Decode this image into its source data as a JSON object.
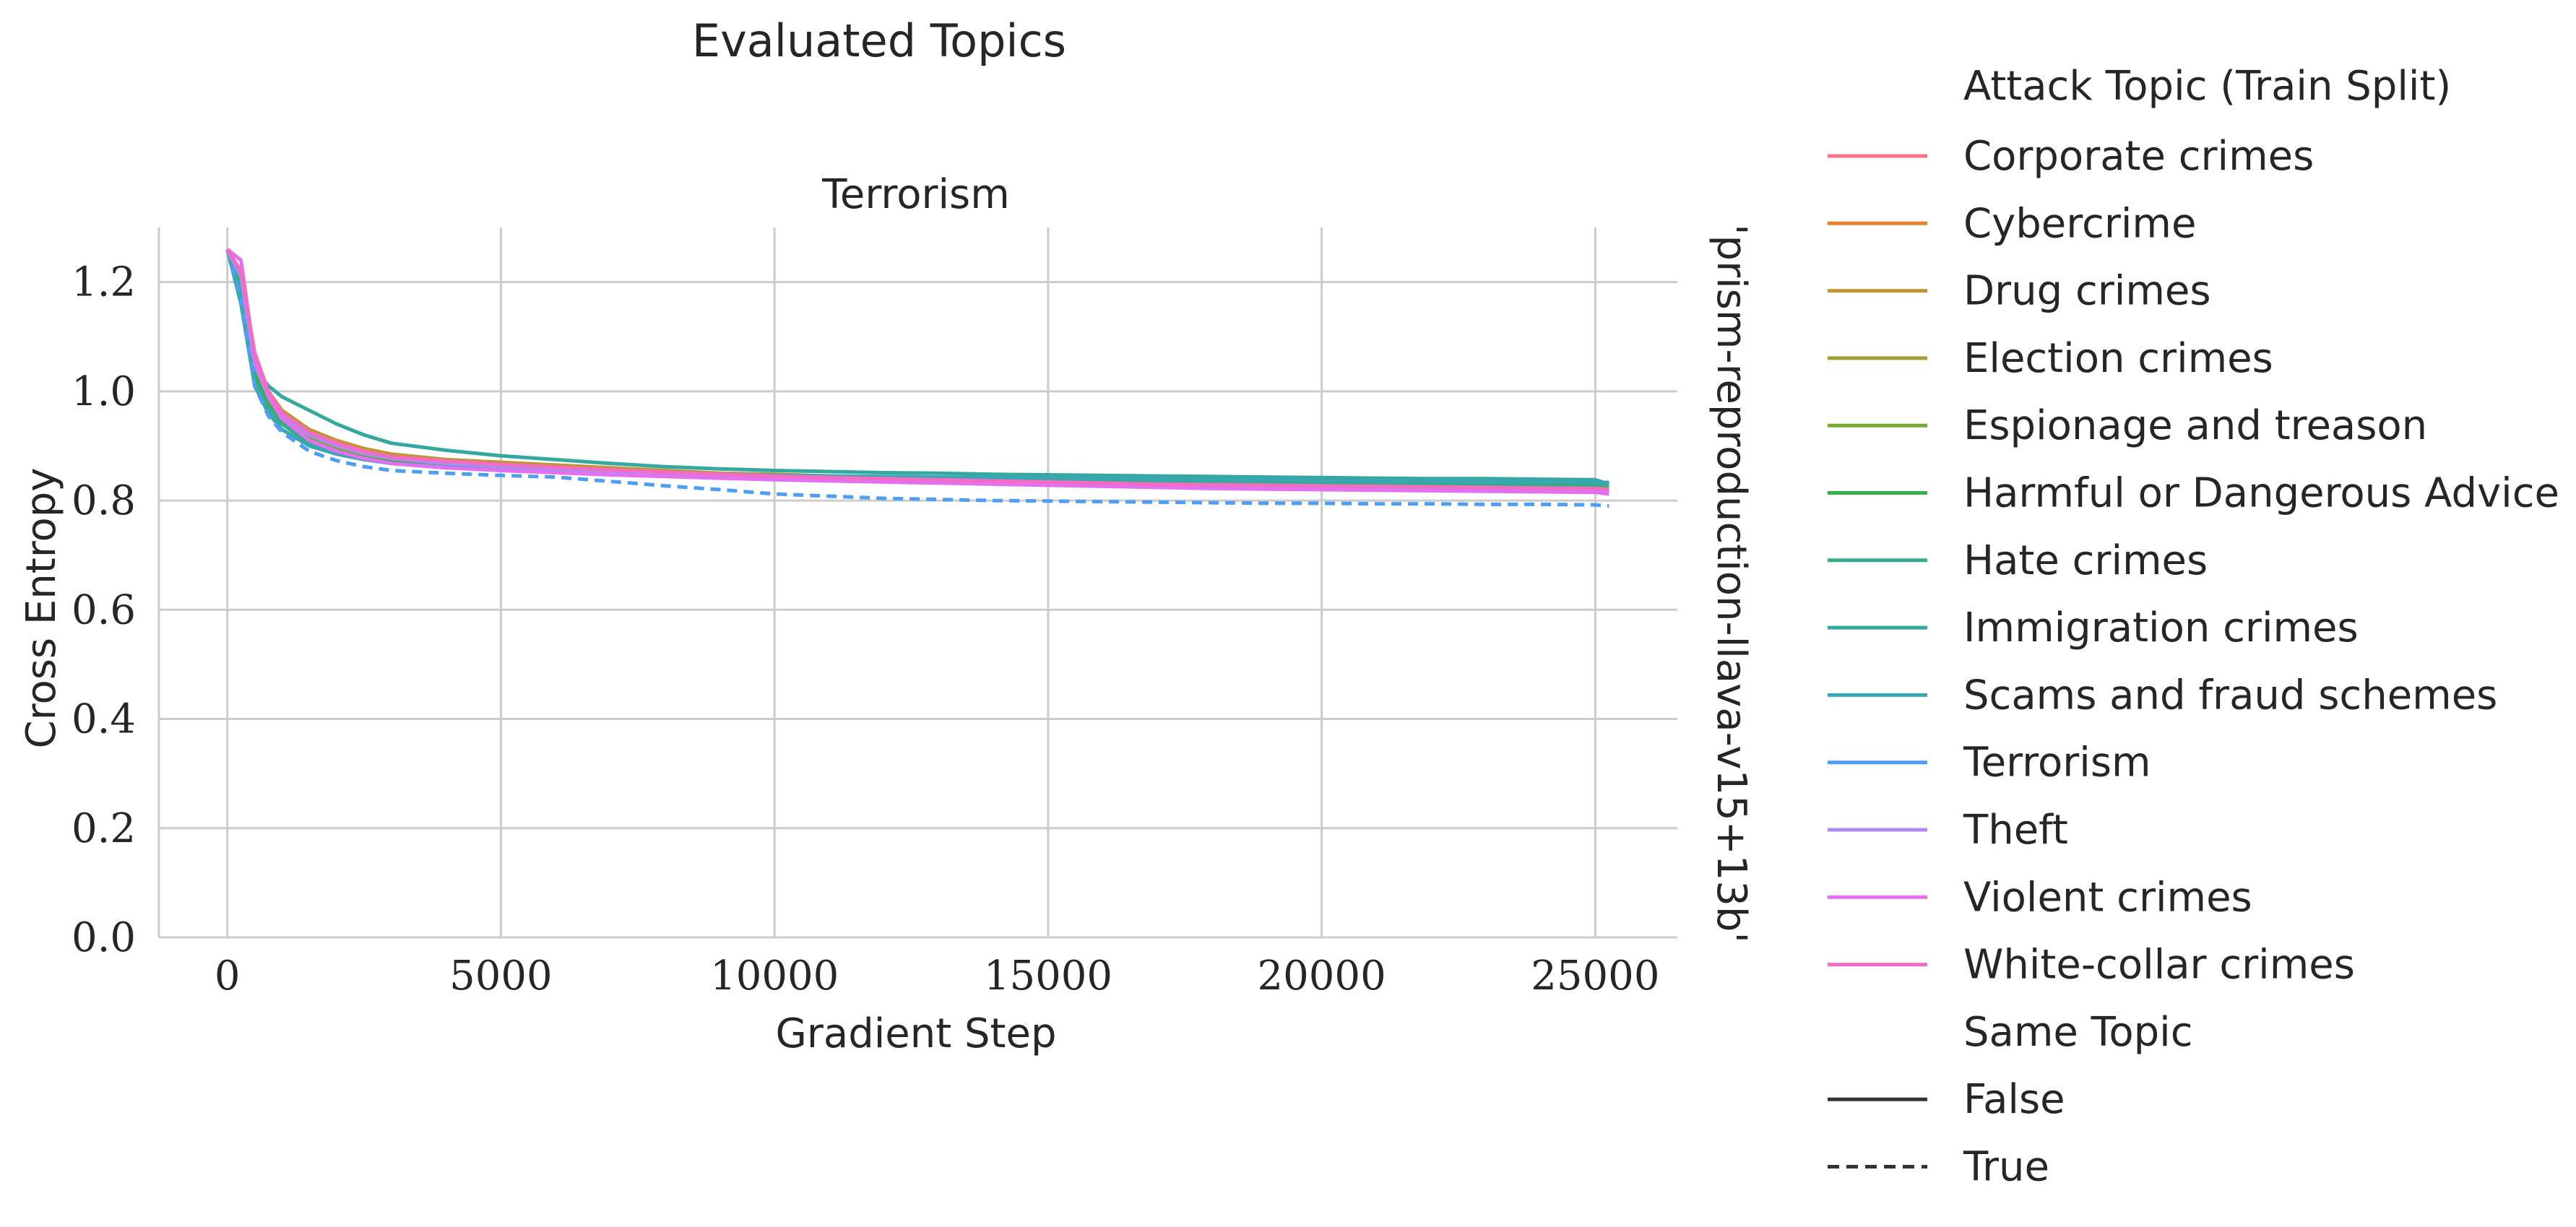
{
  "suptitle": "Evaluated Topics",
  "chart_data": {
    "type": "line",
    "title": "Terrorism",
    "xlabel": "Gradient Step",
    "ylabel": "Cross Entropy",
    "row_label": "'prism-reproduction-llava-v15+13b'",
    "xlim": [
      -1250,
      26500
    ],
    "ylim": [
      0,
      1.3
    ],
    "xticks": [
      0,
      5000,
      10000,
      15000,
      20000,
      25000
    ],
    "xtick_labels": [
      "0",
      "5000",
      "10000",
      "15000",
      "20000",
      "25000"
    ],
    "yticks": [
      0.0,
      0.2,
      0.4,
      0.6,
      0.8,
      1.0,
      1.2
    ],
    "ytick_labels": [
      "0.0",
      "0.2",
      "0.4",
      "0.6",
      "0.8",
      "1.0",
      "1.2"
    ],
    "grid": true,
    "legend_placement": "right outside",
    "x": [
      0,
      250,
      500,
      750,
      1000,
      1500,
      2000,
      2500,
      3000,
      4000,
      5000,
      6000,
      7000,
      8000,
      9000,
      10000,
      11000,
      12000,
      13000,
      14000,
      15000,
      16000,
      17000,
      18000,
      19000,
      20000,
      21000,
      22000,
      23000,
      24000,
      25000,
      25250
    ],
    "series": [
      {
        "name": "Corporate crimes",
        "same_topic": false,
        "values": [
          1.26,
          1.2,
          1.05,
          0.99,
          0.96,
          0.92,
          0.9,
          0.885,
          0.875,
          0.87,
          0.865,
          0.86,
          0.855,
          0.85,
          0.85,
          0.845,
          0.845,
          0.84,
          0.84,
          0.835,
          0.835,
          0.83,
          0.83,
          0.83,
          0.825,
          0.825,
          0.825,
          0.82,
          0.82,
          0.82,
          0.82,
          0.815
        ]
      },
      {
        "name": "Cybercrime",
        "same_topic": false,
        "values": [
          1.26,
          1.2,
          1.05,
          0.99,
          0.96,
          0.925,
          0.905,
          0.89,
          0.88,
          0.87,
          0.865,
          0.86,
          0.855,
          0.85,
          0.848,
          0.845,
          0.843,
          0.84,
          0.838,
          0.835,
          0.833,
          0.83,
          0.828,
          0.826,
          0.825,
          0.824,
          0.823,
          0.822,
          0.821,
          0.82,
          0.82,
          0.818
        ]
      },
      {
        "name": "Drug crimes",
        "same_topic": false,
        "values": [
          1.26,
          1.21,
          1.06,
          1.0,
          0.965,
          0.93,
          0.91,
          0.895,
          0.885,
          0.875,
          0.87,
          0.865,
          0.86,
          0.855,
          0.85,
          0.848,
          0.845,
          0.842,
          0.84,
          0.838,
          0.836,
          0.835,
          0.833,
          0.832,
          0.83,
          0.83,
          0.828,
          0.827,
          0.826,
          0.825,
          0.825,
          0.823
        ]
      },
      {
        "name": "Election crimes",
        "same_topic": false,
        "values": [
          1.26,
          1.19,
          1.04,
          0.98,
          0.95,
          0.915,
          0.895,
          0.88,
          0.872,
          0.865,
          0.86,
          0.855,
          0.85,
          0.846,
          0.843,
          0.84,
          0.838,
          0.836,
          0.834,
          0.833,
          0.832,
          0.83,
          0.829,
          0.828,
          0.827,
          0.826,
          0.825,
          0.824,
          0.823,
          0.822,
          0.822,
          0.82
        ]
      },
      {
        "name": "Espionage and treason",
        "same_topic": false,
        "values": [
          1.26,
          1.2,
          1.04,
          0.98,
          0.95,
          0.915,
          0.895,
          0.882,
          0.873,
          0.865,
          0.86,
          0.856,
          0.852,
          0.848,
          0.845,
          0.842,
          0.84,
          0.838,
          0.836,
          0.835,
          0.834,
          0.833,
          0.832,
          0.831,
          0.83,
          0.83,
          0.829,
          0.828,
          0.828,
          0.827,
          0.827,
          0.825
        ]
      },
      {
        "name": "Harmful or Dangerous Advice",
        "same_topic": false,
        "values": [
          1.26,
          1.19,
          1.03,
          0.975,
          0.945,
          0.91,
          0.89,
          0.878,
          0.87,
          0.862,
          0.857,
          0.853,
          0.85,
          0.847,
          0.845,
          0.843,
          0.841,
          0.84,
          0.839,
          0.838,
          0.837,
          0.836,
          0.835,
          0.834,
          0.833,
          0.833,
          0.832,
          0.831,
          0.83,
          0.83,
          0.829,
          0.828
        ]
      },
      {
        "name": "Hate crimes",
        "same_topic": false,
        "values": [
          1.26,
          1.18,
          1.02,
          0.97,
          0.94,
          0.905,
          0.888,
          0.876,
          0.868,
          0.86,
          0.856,
          0.852,
          0.849,
          0.846,
          0.844,
          0.842,
          0.84,
          0.839,
          0.838,
          0.837,
          0.836,
          0.835,
          0.834,
          0.833,
          0.832,
          0.832,
          0.831,
          0.83,
          0.83,
          0.829,
          0.829,
          0.828
        ]
      },
      {
        "name": "Immigration crimes",
        "same_topic": false,
        "values": [
          1.26,
          1.17,
          1.04,
          1.01,
          0.99,
          0.965,
          0.94,
          0.92,
          0.905,
          0.892,
          0.882,
          0.875,
          0.868,
          0.862,
          0.858,
          0.855,
          0.853,
          0.851,
          0.85,
          0.848,
          0.847,
          0.846,
          0.845,
          0.844,
          0.843,
          0.842,
          0.841,
          0.84,
          0.84,
          0.839,
          0.838,
          0.83
        ]
      },
      {
        "name": "Scams and fraud schemes",
        "same_topic": false,
        "values": [
          1.26,
          1.16,
          1.01,
          0.96,
          0.93,
          0.9,
          0.885,
          0.875,
          0.868,
          0.862,
          0.858,
          0.855,
          0.852,
          0.85,
          0.848,
          0.846,
          0.845,
          0.844,
          0.843,
          0.842,
          0.841,
          0.84,
          0.839,
          0.838,
          0.838,
          0.837,
          0.836,
          0.836,
          0.835,
          0.835,
          0.834,
          0.833
        ]
      },
      {
        "name": "Terrorism",
        "same_topic": true,
        "values": [
          1.26,
          1.17,
          1.01,
          0.955,
          0.925,
          0.89,
          0.873,
          0.862,
          0.855,
          0.85,
          0.846,
          0.843,
          0.835,
          0.827,
          0.82,
          0.812,
          0.808,
          0.804,
          0.802,
          0.8,
          0.799,
          0.798,
          0.797,
          0.796,
          0.795,
          0.795,
          0.794,
          0.794,
          0.793,
          0.793,
          0.792,
          0.79
        ]
      },
      {
        "name": "Theft",
        "same_topic": false,
        "values": [
          1.26,
          1.21,
          1.05,
          0.99,
          0.955,
          0.92,
          0.9,
          0.886,
          0.877,
          0.868,
          0.862,
          0.857,
          0.853,
          0.849,
          0.846,
          0.843,
          0.84,
          0.838,
          0.836,
          0.834,
          0.832,
          0.83,
          0.828,
          0.826,
          0.825,
          0.824,
          0.823,
          0.822,
          0.821,
          0.82,
          0.82,
          0.818
        ]
      },
      {
        "name": "Violent crimes",
        "same_topic": false,
        "values": [
          1.26,
          1.24,
          1.06,
          0.99,
          0.95,
          0.91,
          0.89,
          0.877,
          0.868,
          0.86,
          0.855,
          0.851,
          0.847,
          0.844,
          0.841,
          0.838,
          0.836,
          0.834,
          0.832,
          0.83,
          0.828,
          0.826,
          0.824,
          0.822,
          0.821,
          0.82,
          0.819,
          0.818,
          0.817,
          0.816,
          0.815,
          0.812
        ]
      },
      {
        "name": "White-collar crimes",
        "same_topic": false,
        "values": [
          1.26,
          1.22,
          1.07,
          1.0,
          0.96,
          0.925,
          0.905,
          0.89,
          0.88,
          0.872,
          0.866,
          0.861,
          0.856,
          0.852,
          0.848,
          0.845,
          0.842,
          0.84,
          0.838,
          0.836,
          0.834,
          0.832,
          0.83,
          0.829,
          0.828,
          0.827,
          0.826,
          0.825,
          0.824,
          0.823,
          0.822,
          0.82
        ]
      }
    ],
    "legend": {
      "hue_title": "Attack Topic (Train Split)",
      "style_title": "Same Topic",
      "style_items": [
        {
          "label": "False",
          "dash": "solid"
        },
        {
          "label": "True",
          "dash": "dashed"
        }
      ]
    },
    "colors": {
      "Corporate crimes": "#f77189",
      "Cybercrime": "#e5832f",
      "Drug crimes": "#c39532",
      "Election crimes": "#a39d32",
      "Espionage and treason": "#77aa31",
      "Harmful or Dangerous Advice": "#33b149",
      "Hate crimes": "#35ad8a",
      "Immigration crimes": "#35a99f",
      "Scams and fraud schemes": "#38a7b3",
      "Terrorism": "#4e9ff2",
      "Theft": "#ae8bf2",
      "Violent crimes": "#e56ff1",
      "White-collar crimes": "#f26cc3",
      "axis": "#cccccc",
      "grid": "#cccccc",
      "text": "#262626",
      "style_line": "#333333"
    }
  }
}
